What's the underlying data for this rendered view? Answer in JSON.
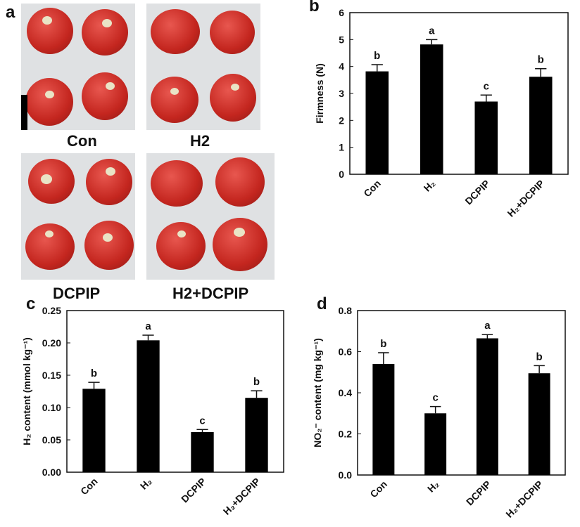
{
  "panel_a": {
    "label": "a",
    "captions": [
      "Con",
      "H2",
      "DCPIP",
      "H2+DCPIP"
    ]
  },
  "chart_data": [
    {
      "panel": "b",
      "type": "bar",
      "categories": [
        "Con",
        "H2",
        "DCPIP",
        "H2+DCPIP"
      ],
      "values": [
        3.82,
        4.82,
        2.7,
        3.62
      ],
      "errors": [
        0.25,
        0.18,
        0.24,
        0.3
      ],
      "significance": [
        "b",
        "a",
        "c",
        "b"
      ],
      "ylabel": "Firmness (N)",
      "ylim": [
        0,
        6
      ],
      "yticks": [
        "0",
        "1",
        "2",
        "3",
        "4",
        "5",
        "6"
      ]
    },
    {
      "panel": "c",
      "type": "bar",
      "categories": [
        "Con",
        "H2",
        "DCPIP",
        "H2+DCPIP"
      ],
      "values": [
        0.129,
        0.204,
        0.062,
        0.115
      ],
      "errors": [
        0.01,
        0.008,
        0.004,
        0.011
      ],
      "significance": [
        "b",
        "a",
        "c",
        "b"
      ],
      "ylabel": "H2 content (mmol kg-1)",
      "ylim": [
        0,
        0.25
      ],
      "yticks": [
        "0.00",
        "0.05",
        "0.10",
        "0.15",
        "0.20",
        "0.25"
      ]
    },
    {
      "panel": "d",
      "type": "bar",
      "categories": [
        "Con",
        "H2",
        "DCPIP",
        "H2+DCPIP"
      ],
      "values": [
        0.54,
        0.3,
        0.665,
        0.495
      ],
      "errors": [
        0.055,
        0.033,
        0.018,
        0.037
      ],
      "significance": [
        "b",
        "c",
        "a",
        "b"
      ],
      "ylabel": "NO2- content (mg kg-1)",
      "ylim": [
        0,
        0.8
      ],
      "yticks": [
        "0.0",
        "0.2",
        "0.4",
        "0.6",
        "0.8"
      ]
    }
  ]
}
